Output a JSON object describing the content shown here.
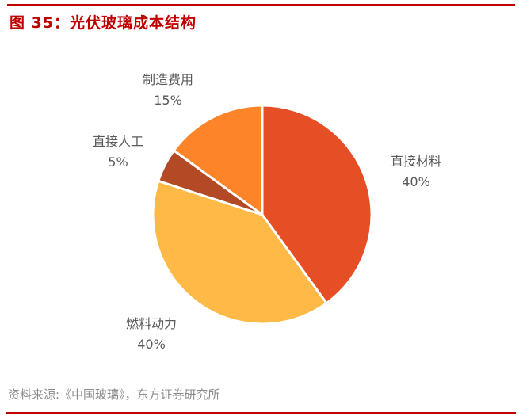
{
  "figure": {
    "title": "图 35：光伏玻璃成本结构",
    "source": "资料来源:《中国玻璃》，东方证券研究所"
  },
  "labels": [
    {
      "name": "直接材料",
      "pct": "40%"
    },
    {
      "name": "燃料动力",
      "pct": "40%"
    },
    {
      "name": "直接人工",
      "pct": "5%"
    },
    {
      "name": "制造费用",
      "pct": "15%"
    }
  ],
  "colors": {
    "accent": "#c00000",
    "slices": [
      "#e64e25",
      "#ffb946",
      "#b34a25",
      "#fd8428"
    ]
  },
  "chart_data": {
    "type": "pie",
    "title": "光伏玻璃成本结构",
    "categories": [
      "直接材料",
      "燃料动力",
      "直接人工",
      "制造费用"
    ],
    "values": [
      40,
      40,
      5,
      15
    ],
    "unit": "%",
    "start_angle": "12 o'clock, clockwise",
    "legend": "none (data labels outside)",
    "source": "《中国玻璃》，东方证券研究所"
  }
}
